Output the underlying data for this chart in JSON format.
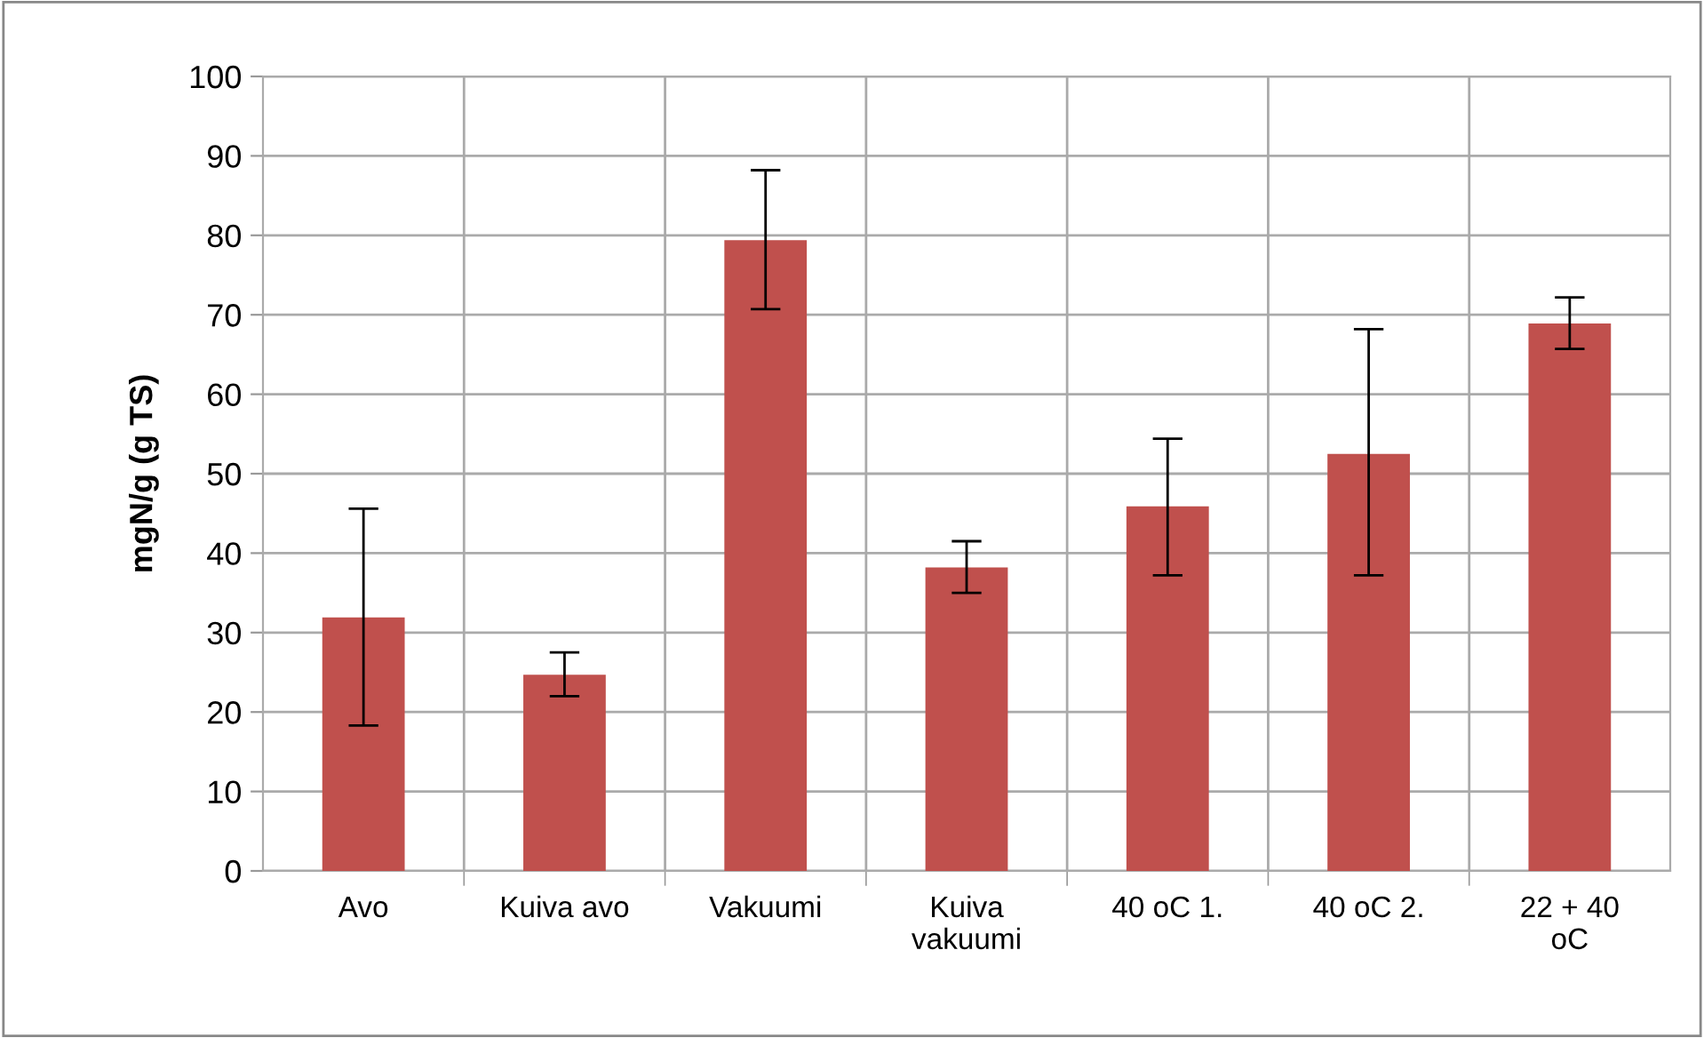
{
  "chart_data": {
    "type": "bar",
    "ylabel": "mgN/g (g TS)",
    "categories": [
      "Avo",
      "Kuiva avo",
      "Vakuumi",
      "Kuiva\nvakuumi",
      "40 oC 1.",
      "40 oC 2.",
      "22 + 40\noC"
    ],
    "values": [
      31.9,
      24.7,
      79.4,
      38.2,
      45.9,
      52.5,
      68.9
    ],
    "errors": [
      [
        18.3,
        45.6
      ],
      [
        22.0,
        27.5
      ],
      [
        70.7,
        88.2
      ],
      [
        35.0,
        41.5
      ],
      [
        37.2,
        54.4
      ],
      [
        37.2,
        68.2
      ],
      [
        65.7,
        72.2
      ]
    ],
    "color": "#c0504d",
    "ylim": [
      0,
      100
    ],
    "yticks": [
      0,
      10,
      20,
      30,
      40,
      50,
      60,
      70,
      80,
      90,
      100
    ],
    "grid": true
  }
}
